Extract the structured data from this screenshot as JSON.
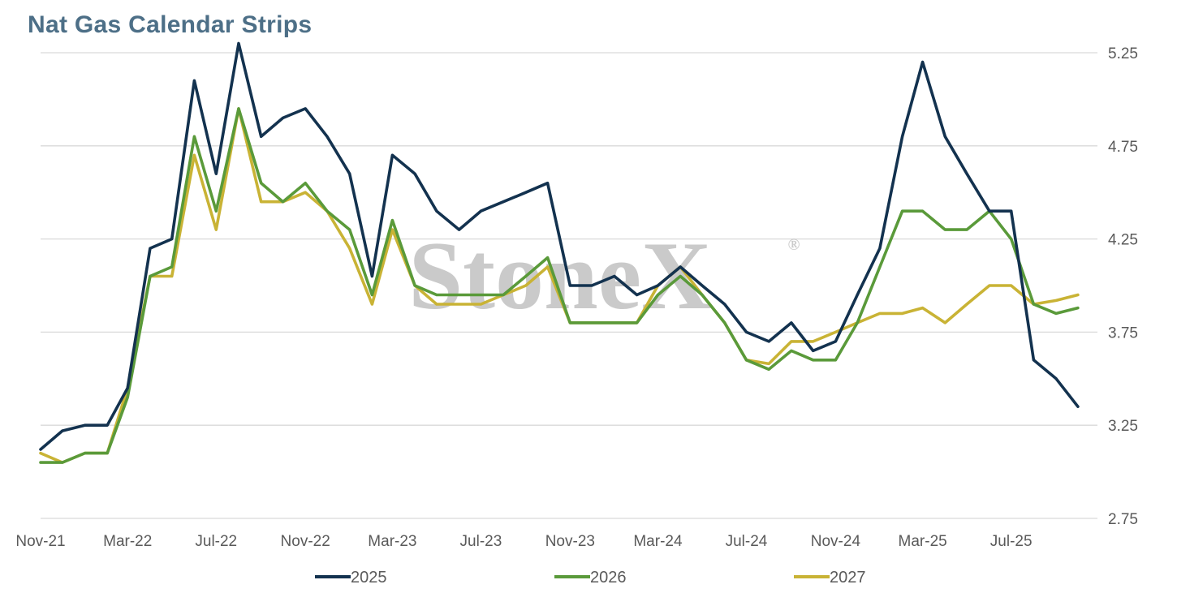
{
  "chart_data": {
    "type": "line",
    "title": "Nat Gas Calendar Strips",
    "watermark": "StoneX",
    "watermark_mark": "®",
    "x_tick_labels": [
      "Nov-21",
      "Mar-22",
      "Jul-22",
      "Nov-22",
      "Mar-23",
      "Jul-23",
      "Nov-23",
      "Mar-24",
      "Jul-24",
      "Nov-24",
      "Mar-25",
      "Jul-25"
    ],
    "y_tick_labels": [
      "2.75",
      "3.25",
      "3.75",
      "4.25",
      "4.75",
      "5.25"
    ],
    "xlim": [
      "2021-11-01",
      "2025-10-28"
    ],
    "ylim": [
      2.75,
      5.25
    ],
    "grid": true,
    "legend_position": "bottom",
    "colors": {
      "2025": "#13324f",
      "2026": "#5a9a3a",
      "2027": "#c9b335"
    },
    "x_dates": [
      "2021-11",
      "2021-12",
      "2022-01",
      "2022-02",
      "2022-03",
      "2022-04",
      "2022-05",
      "2022-06",
      "2022-07",
      "2022-08",
      "2022-09",
      "2022-10",
      "2022-11",
      "2022-12",
      "2023-01",
      "2023-02",
      "2023-03",
      "2023-04",
      "2023-05",
      "2023-06",
      "2023-07",
      "2023-08",
      "2023-09",
      "2023-10",
      "2023-11",
      "2023-12",
      "2024-01",
      "2024-02",
      "2024-03",
      "2024-04",
      "2024-05",
      "2024-06",
      "2024-07",
      "2024-08",
      "2024-09",
      "2024-10",
      "2024-11",
      "2024-12",
      "2025-01",
      "2025-02",
      "2025-03",
      "2025-04",
      "2025-05",
      "2025-06",
      "2025-07",
      "2025-08",
      "2025-09",
      "2025-10"
    ],
    "series": [
      {
        "name": "2025",
        "values": [
          3.12,
          3.22,
          3.25,
          3.25,
          3.45,
          4.2,
          4.25,
          5.1,
          4.6,
          5.3,
          4.8,
          4.9,
          4.95,
          4.8,
          4.6,
          4.05,
          4.7,
          4.6,
          4.4,
          4.3,
          4.4,
          4.45,
          4.5,
          4.55,
          4.0,
          4.0,
          4.05,
          3.95,
          4.0,
          4.1,
          4.0,
          3.9,
          3.75,
          3.7,
          3.8,
          3.65,
          3.7,
          3.95,
          4.2,
          4.8,
          5.2,
          4.8,
          4.6,
          4.4,
          4.4,
          3.6,
          3.5,
          3.35
        ]
      },
      {
        "name": "2026",
        "values": [
          3.05,
          3.05,
          3.1,
          3.1,
          3.4,
          4.05,
          4.1,
          4.8,
          4.4,
          4.95,
          4.55,
          4.45,
          4.55,
          4.4,
          4.3,
          3.95,
          4.35,
          4.0,
          3.95,
          3.95,
          3.95,
          3.95,
          4.05,
          4.15,
          3.8,
          3.8,
          3.8,
          3.8,
          3.95,
          4.05,
          3.95,
          3.8,
          3.6,
          3.55,
          3.65,
          3.6,
          3.6,
          3.8,
          4.1,
          4.4,
          4.4,
          4.3,
          4.3,
          4.4,
          4.25,
          3.9,
          3.85,
          3.88
        ]
      },
      {
        "name": "2027",
        "values": [
          3.1,
          3.05,
          3.1,
          3.1,
          3.45,
          4.05,
          4.05,
          4.7,
          4.3,
          4.95,
          4.45,
          4.45,
          4.5,
          4.4,
          4.2,
          3.9,
          4.3,
          4.0,
          3.9,
          3.9,
          3.9,
          3.95,
          4.0,
          4.1,
          3.8,
          3.8,
          3.8,
          3.8,
          4.0,
          4.1,
          3.95,
          3.8,
          3.6,
          3.58,
          3.7,
          3.7,
          3.75,
          3.8,
          3.85,
          3.85,
          3.88,
          3.8,
          3.9,
          4.0,
          4.0,
          3.9,
          3.92,
          3.95
        ]
      }
    ]
  }
}
